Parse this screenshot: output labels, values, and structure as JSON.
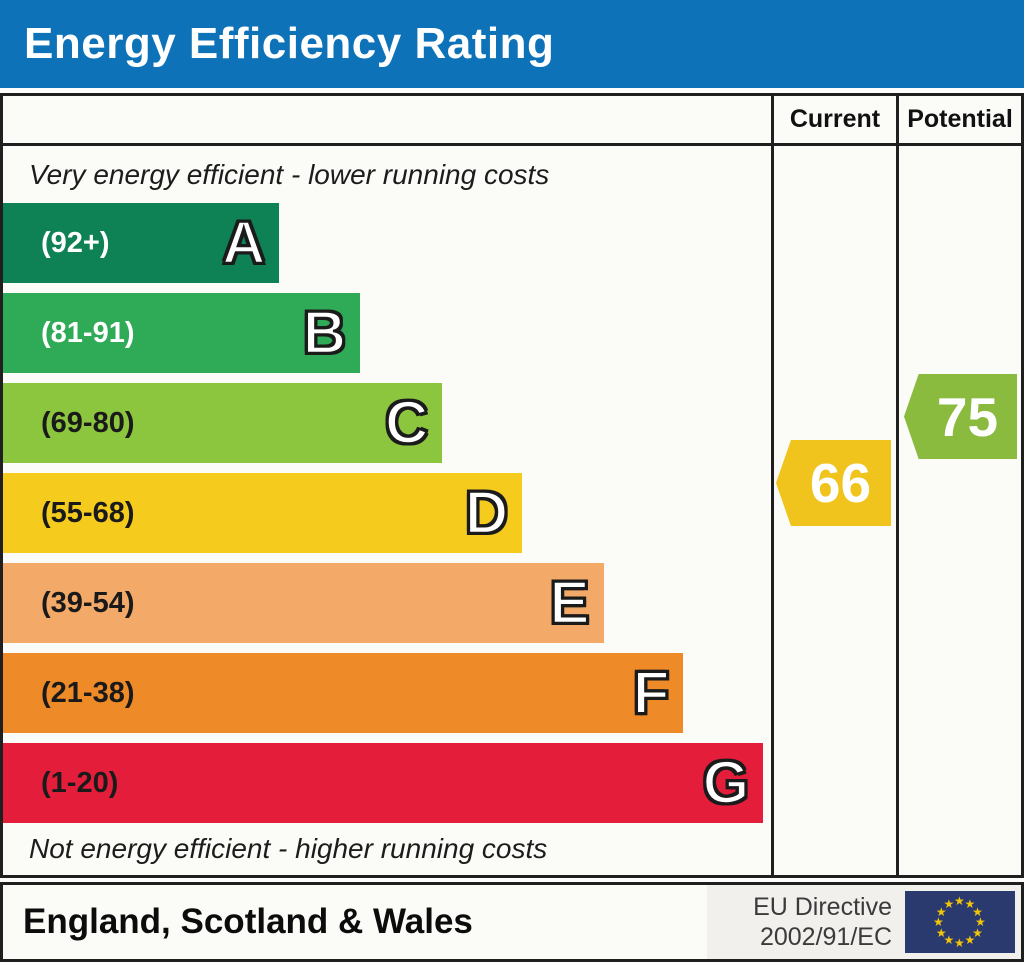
{
  "title": "Energy Efficiency Rating",
  "columns": {
    "current": "Current",
    "potential": "Potential"
  },
  "top_note": "Very energy efficient - lower running costs",
  "bottom_note": "Not energy efficient - higher running costs",
  "bands": [
    {
      "letter": "A",
      "range": "(92+)",
      "color": "#0e8155",
      "text_color": "#ffffff",
      "width_pct": 36.0
    },
    {
      "letter": "B",
      "range": "(81-91)",
      "color": "#2faa57",
      "text_color": "#ffffff",
      "width_pct": 46.5
    },
    {
      "letter": "C",
      "range": "(69-80)",
      "color": "#8cc63f",
      "text_color": "#1a1a1a",
      "width_pct": 57.2
    },
    {
      "letter": "D",
      "range": "(55-68)",
      "color": "#f5cb1e",
      "text_color": "#1a1a1a",
      "width_pct": 67.6
    },
    {
      "letter": "E",
      "range": "(39-54)",
      "color": "#f3a967",
      "text_color": "#1a1a1a",
      "width_pct": 78.2
    },
    {
      "letter": "F",
      "range": "(21-38)",
      "color": "#ee8a28",
      "text_color": "#1a1a1a",
      "width_pct": 88.6
    },
    {
      "letter": "G",
      "range": "(1-20)",
      "color": "#e41e3a",
      "text_color": "#1a1a1a",
      "width_pct": 99.0
    }
  ],
  "ratings": {
    "current": {
      "value": "66",
      "color": "#f0c41c",
      "band": "D"
    },
    "potential": {
      "value": "75",
      "color": "#8aba3e",
      "band": "C"
    }
  },
  "footer": {
    "region": "England, Scotland & Wales",
    "directive_line1": "EU Directive",
    "directive_line2": "2002/91/EC",
    "eu_flag": {
      "background": "#2a3a6e",
      "star_color": "#f2c50a",
      "star_count": 12
    }
  },
  "colors": {
    "header_bg": "#0d72b7",
    "border": "#1f1f1f"
  },
  "chart_data": {
    "type": "bar",
    "title": "Energy Efficiency Rating",
    "categories": [
      "A",
      "B",
      "C",
      "D",
      "E",
      "F",
      "G"
    ],
    "band_ranges": [
      "92+",
      "81-91",
      "69-80",
      "55-68",
      "39-54",
      "21-38",
      "1-20"
    ],
    "band_colors": [
      "#0e8155",
      "#2faa57",
      "#8cc63f",
      "#f5cb1e",
      "#f3a967",
      "#ee8a28",
      "#e41e3a"
    ],
    "bar_length_pct": [
      36.0,
      46.5,
      57.2,
      67.6,
      78.2,
      88.6,
      99.0
    ],
    "series": [
      {
        "name": "Current",
        "value": 66,
        "band": "D",
        "color": "#f0c41c"
      },
      {
        "name": "Potential",
        "value": 75,
        "band": "C",
        "color": "#8aba3e"
      }
    ],
    "scale": [
      1,
      100
    ],
    "top_annotation": "Very energy efficient - lower running costs",
    "bottom_annotation": "Not energy efficient - higher running costs",
    "footer_left": "England, Scotland & Wales",
    "footer_right": "EU Directive 2002/91/EC",
    "legend_position": "none",
    "grid": false
  }
}
